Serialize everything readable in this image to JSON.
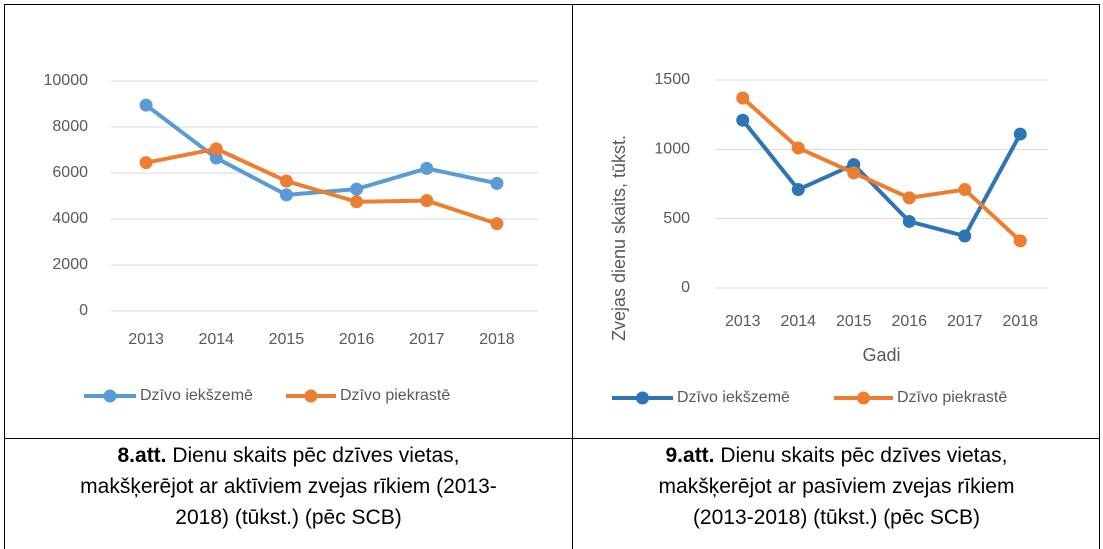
{
  "chart_data": [
    {
      "type": "line",
      "categories": [
        "2013",
        "2014",
        "2015",
        "2016",
        "2017",
        "2018"
      ],
      "ylim": [
        0,
        10000
      ],
      "yticks": [
        0,
        2000,
        4000,
        6000,
        8000,
        10000
      ],
      "grid": true,
      "legend": "bottom",
      "series": [
        {
          "name": "Dzīvo iekšzemē",
          "color": "#5b9bd5",
          "values": [
            8950,
            6650,
            5050,
            5300,
            6200,
            5550
          ]
        },
        {
          "name": "Dzīvo piekrastē",
          "color": "#ed7d31",
          "values": [
            6450,
            7050,
            5650,
            4750,
            4800,
            3800
          ]
        }
      ]
    },
    {
      "type": "line",
      "categories": [
        "2013",
        "2014",
        "2015",
        "2016",
        "2017",
        "2018"
      ],
      "ylabel": "Zvejas dienu skaits, tūkst.",
      "xlabel": "Gadi",
      "ylim": [
        0,
        1500
      ],
      "yticks": [
        0,
        500,
        1000,
        1500
      ],
      "grid": true,
      "legend": "bottom",
      "series": [
        {
          "name": "Dzīvo iekšzemē",
          "color": "#2e75b6",
          "values": [
            1210,
            710,
            890,
            480,
            375,
            1110
          ]
        },
        {
          "name": "Dzīvo piekrastē",
          "color": "#ed7d31",
          "values": [
            1370,
            1010,
            830,
            650,
            710,
            340
          ]
        }
      ]
    }
  ],
  "captions": [
    {
      "label": "8.att.",
      "lines": [
        " Dienu skaits pēc dzīves vietas,",
        "makšķerējot ar aktīviem zvejas rīkiem (2013-",
        "2018) (tūkst.) (pēc SCB)"
      ]
    },
    {
      "label": "9.att.",
      "lines": [
        " Dienu skaits pēc dzīves vietas,",
        "makšķerējot ar pasīviem zvejas rīkiem",
        "(2013-2018) (tūkst.) (pēc SCB)"
      ]
    }
  ]
}
